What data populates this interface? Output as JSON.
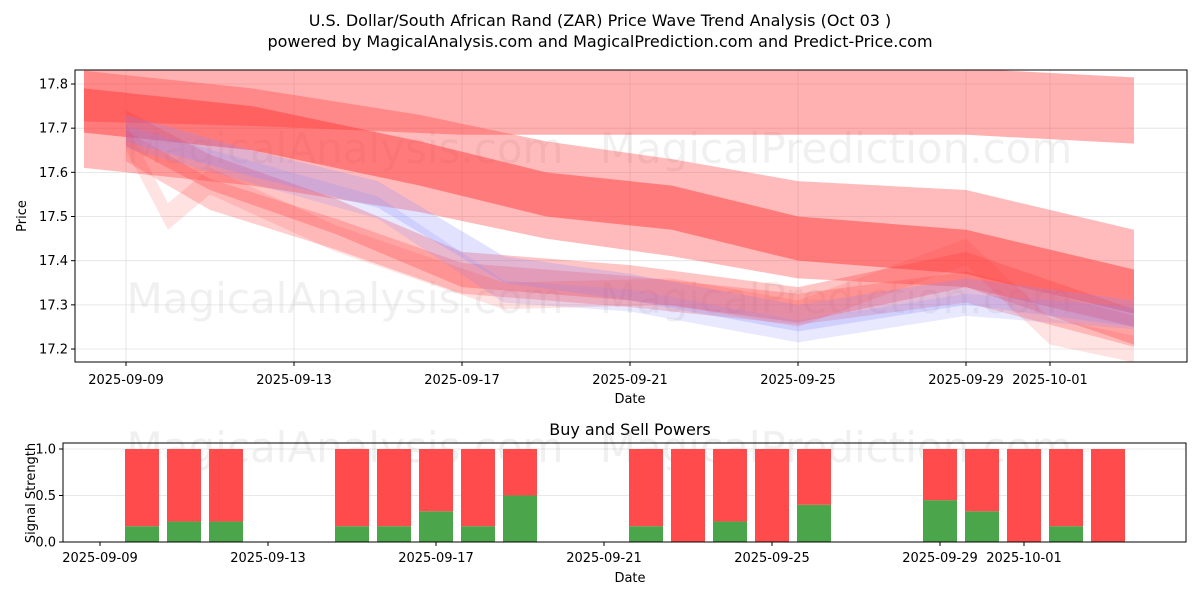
{
  "header": {
    "title": "U.S. Dollar/South African Rand (ZAR) Price Wave Trend Analysis (Oct 03 )",
    "subtitle": "powered by MagicalAnalysis.com and MagicalPrediction.com and Predict-Price.com"
  },
  "watermarks": [
    "MagicalAnalysis.com",
    "MagicalPrediction.com"
  ],
  "colors": {
    "sell": "#ff4b4b",
    "buy": "#4ba64b",
    "red_band": "#ff3c3c",
    "blue_band": "#8c8cff"
  },
  "chart_data": [
    {
      "type": "area",
      "title": "",
      "xlabel": "Date",
      "ylabel": "Price",
      "ylim": [
        17.17,
        17.83
      ],
      "xlim": [
        "2025-09-08",
        "2025-10-04"
      ],
      "grid": true,
      "yticks": [
        "17.2",
        "17.3",
        "17.4",
        "17.5",
        "17.6",
        "17.7",
        "17.8"
      ],
      "xticks": [
        "2025-09-09",
        "2025-09-13",
        "2025-09-17",
        "2025-09-21",
        "2025-09-25",
        "2025-09-29",
        "2025-10-01"
      ],
      "bands": [
        {
          "name": "upper-wave",
          "color": "red",
          "opacity": 0.4,
          "x": [
            "2025-09-08",
            "2025-09-12",
            "2025-09-17",
            "2025-09-21",
            "2025-09-25",
            "2025-09-29",
            "2025-10-03"
          ],
          "y_center": [
            17.79,
            17.78,
            17.76,
            17.76,
            17.76,
            17.76,
            17.74
          ],
          "width": 0.15
        },
        {
          "name": "main-wave",
          "color": "red",
          "opacity": 0.5,
          "x": [
            "2025-09-08",
            "2025-09-12",
            "2025-09-16",
            "2025-09-19",
            "2025-09-22",
            "2025-09-25",
            "2025-09-29",
            "2025-10-03"
          ],
          "y_center": [
            17.74,
            17.7,
            17.62,
            17.55,
            17.52,
            17.45,
            17.42,
            17.33
          ],
          "width": 0.1
        },
        {
          "name": "outer-wave",
          "color": "red",
          "opacity": 0.35,
          "x": [
            "2025-09-08",
            "2025-09-12",
            "2025-09-16",
            "2025-09-19",
            "2025-09-22",
            "2025-09-25",
            "2025-09-29",
            "2025-10-03"
          ],
          "y_center": [
            17.72,
            17.68,
            17.62,
            17.56,
            17.52,
            17.47,
            17.45,
            17.36
          ],
          "width": 0.22
        },
        {
          "name": "lower-wave-a",
          "color": "red",
          "opacity": 0.3,
          "x": [
            "2025-09-09",
            "2025-09-11",
            "2025-09-14",
            "2025-09-17",
            "2025-09-21",
            "2025-09-25",
            "2025-09-29",
            "2025-10-03"
          ],
          "y_center": [
            17.7,
            17.6,
            17.5,
            17.38,
            17.35,
            17.3,
            17.38,
            17.25
          ],
          "width": 0.08
        },
        {
          "name": "lower-wave-b",
          "color": "red",
          "opacity": 0.25,
          "x": [
            "2025-09-09",
            "2025-09-11",
            "2025-09-14",
            "2025-09-17",
            "2025-09-21",
            "2025-09-25",
            "2025-09-29",
            "2025-10-03"
          ],
          "y_center": [
            17.66,
            17.55,
            17.46,
            17.36,
            17.33,
            17.29,
            17.34,
            17.24
          ],
          "width": 0.07
        },
        {
          "name": "blue-wave-a",
          "color": "blue",
          "opacity": 0.25,
          "x": [
            "2025-09-09",
            "2025-09-12",
            "2025-09-15",
            "2025-09-18",
            "2025-09-21",
            "2025-09-25",
            "2025-09-29",
            "2025-10-03"
          ],
          "y_center": [
            17.7,
            17.62,
            17.55,
            17.38,
            17.34,
            17.27,
            17.33,
            17.28
          ],
          "width": 0.06
        },
        {
          "name": "blue-wave-b",
          "color": "blue",
          "opacity": 0.2,
          "x": [
            "2025-09-09",
            "2025-09-12",
            "2025-09-15",
            "2025-09-18",
            "2025-09-21",
            "2025-09-25",
            "2025-09-29",
            "2025-10-03"
          ],
          "y_center": [
            17.68,
            17.6,
            17.52,
            17.33,
            17.31,
            17.24,
            17.3,
            17.27
          ],
          "width": 0.05
        },
        {
          "name": "spike-wave",
          "color": "red",
          "opacity": 0.15,
          "x": [
            "2025-09-09",
            "2025-09-10",
            "2025-09-11",
            "2025-09-14",
            "2025-09-18",
            "2025-09-22",
            "2025-09-25",
            "2025-09-29",
            "2025-10-01",
            "2025-10-03"
          ],
          "y_center": [
            17.68,
            17.5,
            17.58,
            17.45,
            17.32,
            17.33,
            17.28,
            17.42,
            17.24,
            17.2
          ],
          "width": 0.06
        }
      ]
    },
    {
      "type": "bar",
      "title": "Buy and Sell Powers",
      "xlabel": "Date",
      "ylabel": "Signal Strength",
      "ylim": [
        0,
        1.05
      ],
      "yticks": [
        "0.0",
        "0.5",
        "1.0"
      ],
      "xticks": [
        "2025-09-09",
        "2025-09-13",
        "2025-09-17",
        "2025-09-21",
        "2025-09-25",
        "2025-09-29",
        "2025-10-01"
      ],
      "grid": true,
      "categories": [
        "2025-09-10",
        "2025-09-11",
        "2025-09-12",
        "2025-09-15",
        "2025-09-16",
        "2025-09-17",
        "2025-09-18",
        "2025-09-19",
        "2025-09-22",
        "2025-09-23",
        "2025-09-24",
        "2025-09-25",
        "2025-09-26",
        "2025-09-29",
        "2025-09-30",
        "2025-10-01",
        "2025-10-02",
        "2025-10-03"
      ],
      "series": [
        {
          "name": "Buy",
          "color": "green",
          "values": [
            0.17,
            0.22,
            0.22,
            0.17,
            0.17,
            0.33,
            0.17,
            0.5,
            0.17,
            0.0,
            0.22,
            0.0,
            0.4,
            0.45,
            0.33,
            0.0,
            0.17,
            0.0
          ]
        },
        {
          "name": "Sell",
          "color": "red",
          "values": [
            0.83,
            0.78,
            0.78,
            0.83,
            0.83,
            0.67,
            0.83,
            0.5,
            0.83,
            1.0,
            0.78,
            1.0,
            0.6,
            0.55,
            0.67,
            1.0,
            0.83,
            1.0
          ]
        }
      ]
    }
  ]
}
